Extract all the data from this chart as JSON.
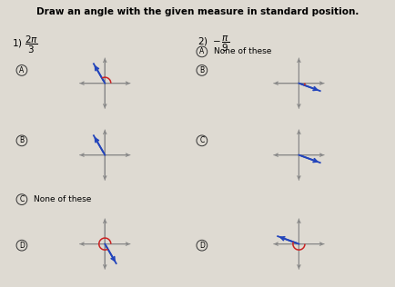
{
  "title": "Draw an angle with the given measure in standard position.",
  "bg_color": "#dedad2",
  "axis_color": "#888888",
  "ray_color": "#2244bb",
  "arc_color": "#cc2222",
  "left_angles": [
    120,
    120,
    null,
    300
  ],
  "left_has_arc": [
    true,
    false,
    false,
    true
  ],
  "right_angles": [
    null,
    -20,
    -20,
    -200
  ],
  "right_has_arc": [
    false,
    true,
    false,
    true
  ],
  "option_letters_L": [
    "A",
    "B",
    "C",
    "D"
  ],
  "option_letters_R": [
    "A",
    "B",
    "C",
    "D"
  ],
  "left_text": [
    "",
    "",
    "None of these",
    ""
  ],
  "right_text": [
    "None of these",
    "",
    "",
    ""
  ],
  "title_fontsize": 7.5,
  "label_fontsize": 6.0,
  "text_fontsize": 6.5
}
